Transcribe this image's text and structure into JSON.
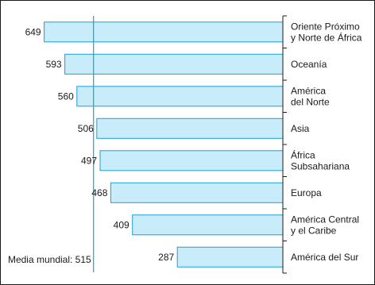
{
  "chart_data": {
    "type": "bar",
    "orientation": "horizontal",
    "categories": [
      [
        "Oriente Próximo",
        "y Norte de África"
      ],
      [
        "Oceanía"
      ],
      [
        "América",
        "del Norte"
      ],
      [
        "Asia"
      ],
      [
        "África",
        "Subsahariana"
      ],
      [
        "Europa"
      ],
      [
        "América Central",
        "y el Caribe"
      ],
      [
        "América del Sur"
      ]
    ],
    "values": [
      649,
      593,
      560,
      506,
      497,
      468,
      409,
      287
    ],
    "value_labels": [
      "649",
      "593",
      "560",
      "506",
      "497",
      "468",
      "409",
      "287"
    ],
    "reference_line": {
      "value": 515,
      "label": "Media mundial: 515"
    },
    "bar_direction": "right-to-left",
    "xlim": [
      0,
      700
    ],
    "grid": false,
    "title": "",
    "xlabel": "",
    "ylabel": "",
    "colors": {
      "bar_fill": "#c9ecfb",
      "bar_stroke": "#1aa0d8",
      "reference_line": "#1aa0d8",
      "axis": "#1a1a1a",
      "frame": "#1a1a1a"
    }
  }
}
